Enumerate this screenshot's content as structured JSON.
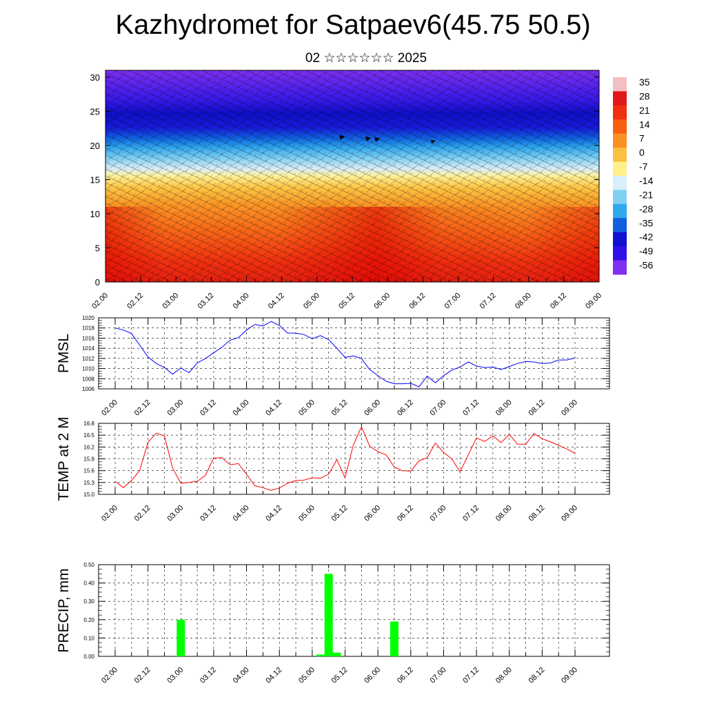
{
  "title": "Kazhydromet for Satpaev6(45.75 50.5)",
  "subtitle": "02 ☆☆☆☆☆☆ 2025",
  "time_ticks": [
    "02.00",
    "02.12",
    "03.00",
    "03.12",
    "04.00",
    "04.12",
    "05.00",
    "05.12",
    "06.00",
    "06.12",
    "07.00",
    "07.12",
    "08.00",
    "08.12",
    "09.00"
  ],
  "chart_data": [
    {
      "type": "heatmap",
      "title": "",
      "y_ticks": [
        "0",
        "5",
        "10",
        "15",
        "20",
        "25",
        "30"
      ],
      "ylim": [
        0,
        31
      ],
      "colorbar": {
        "labels": [
          "35",
          "28",
          "21",
          "14",
          "7",
          "0",
          "-7",
          "-14",
          "-21",
          "-28",
          "-35",
          "-42",
          "-49",
          "-56"
        ],
        "colors": [
          "#f2c0c0",
          "#e01818",
          "#f03010",
          "#f86010",
          "#fa9020",
          "#fcc040",
          "#fff08a",
          "#d8eef8",
          "#80d0f2",
          "#30a8ec",
          "#1060e0",
          "#1010d0",
          "#3010e8",
          "#8030f0"
        ]
      },
      "overlay": "wind barbs",
      "levels": {
        "surface_temp": 21,
        "at_16": -7,
        "at_22": -35,
        "at_25": -56,
        "top": -49
      }
    },
    {
      "type": "line",
      "ylabel": "PMSL",
      "y_ticks": [
        "1006",
        "1008",
        "1010",
        "1012",
        "1014",
        "1016",
        "1018",
        "1020"
      ],
      "ylim": [
        1006,
        1020
      ],
      "color": "#0000ff",
      "values": [
        1018.0,
        1017.6,
        1016.9,
        1014.6,
        1012.3,
        1011.0,
        1010.2,
        1008.9,
        1010.1,
        1009.2,
        1011.1,
        1012.0,
        1013.1,
        1014.2,
        1015.6,
        1016.1,
        1017.6,
        1018.7,
        1018.4,
        1019.3,
        1018.5,
        1017.0,
        1017.0,
        1016.7,
        1015.9,
        1016.5,
        1015.7,
        1014.0,
        1012.2,
        1012.5,
        1012.0,
        1009.8,
        1008.6,
        1007.5,
        1007.0,
        1007.0,
        1007.1,
        1006.4,
        1008.5,
        1007.2,
        1008.6,
        1009.7,
        1010.3,
        1011.3,
        1010.5,
        1010.2,
        1010.3,
        1009.8,
        1010.4,
        1011.0,
        1011.4,
        1011.3,
        1011.0,
        1011.1,
        1011.7,
        1011.7,
        1012.1
      ]
    },
    {
      "type": "line",
      "ylabel": "TEMP at 2 M",
      "y_ticks": [
        "15.0",
        "15.3",
        "15.6",
        "15.9",
        "16.2",
        "16.5",
        "16.8"
      ],
      "ylim": [
        15.0,
        16.8
      ],
      "color": "#ff0000",
      "values": [
        15.33,
        15.17,
        15.35,
        15.61,
        16.32,
        16.55,
        16.48,
        15.66,
        15.28,
        15.3,
        15.33,
        15.48,
        15.92,
        15.93,
        15.75,
        15.78,
        15.51,
        15.22,
        15.17,
        15.1,
        15.16,
        15.28,
        15.35,
        15.36,
        15.42,
        15.41,
        15.51,
        15.88,
        15.42,
        16.25,
        16.71,
        16.22,
        16.08,
        16.0,
        15.69,
        15.6,
        15.59,
        15.85,
        15.93,
        16.3,
        16.06,
        15.9,
        15.57,
        16.0,
        16.43,
        16.34,
        16.48,
        16.31,
        16.52,
        16.27,
        16.27,
        16.54,
        16.41,
        16.33,
        16.24,
        16.15,
        16.04
      ]
    },
    {
      "type": "bar",
      "ylabel": "PRECIP, mm",
      "y_ticks": [
        "0.00",
        "0.10",
        "0.20",
        "0.30",
        "0.40",
        "0.50"
      ],
      "ylim": [
        0,
        0.5
      ],
      "color": "#00ff00",
      "bars": [
        {
          "t": 3.0,
          "value": 0.2
        },
        {
          "t": 5.125,
          "value": 0.01
        },
        {
          "t": 5.25,
          "value": 0.45
        },
        {
          "t": 5.375,
          "value": 0.02
        },
        {
          "t": 6.25,
          "value": 0.19
        }
      ]
    }
  ]
}
